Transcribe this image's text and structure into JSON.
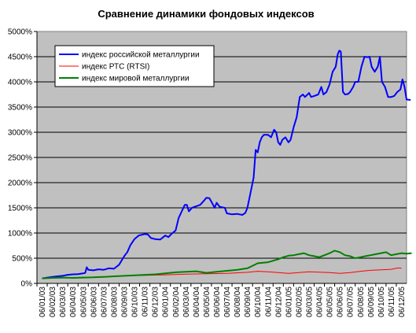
{
  "chart_data": {
    "type": "line",
    "title": "Сравнение динамики фондовых индексов",
    "xlabel": "",
    "ylabel": "",
    "ylim": [
      0,
      5000
    ],
    "yticks": [
      "0%",
      "500%",
      "1000%",
      "1500%",
      "2000%",
      "2500%",
      "3000%",
      "3500%",
      "4000%",
      "4500%",
      "5000%"
    ],
    "y_unit": "%",
    "grid": "horizontal",
    "plot_background": "#c0c0c0",
    "legend_position": "top-left",
    "categories": [
      "06/01/03",
      "06/02/03",
      "06/03/03",
      "06/04/03",
      "06/05/03",
      "06/06/03",
      "06/07/03",
      "06/08/03",
      "06/09/03",
      "06/10/03",
      "06/11/03",
      "06/12/03",
      "06/01/04",
      "06/02/04",
      "06/03/04",
      "06/04/04",
      "06/05/04",
      "06/06/04",
      "06/07/04",
      "06/08/04",
      "06/09/04",
      "06/10/04",
      "06/11/04",
      "06/12/04",
      "06/01/05",
      "06/02/05",
      "06/03/05",
      "06/04/05",
      "06/05/05",
      "06/06/05",
      "06/07/05",
      "06/08/05",
      "06/09/05",
      "06/10/05",
      "06/11/05",
      "06/12/05"
    ],
    "series": [
      {
        "name": "индекс российской металлургии",
        "color": "#0000ff",
        "points": [
          [
            0,
            100
          ],
          [
            1,
            130
          ],
          [
            1.5,
            140
          ],
          [
            2,
            150
          ],
          [
            2.5,
            170
          ],
          [
            3,
            180
          ],
          [
            3.5,
            185
          ],
          [
            4,
            200
          ],
          [
            4.2,
            210
          ],
          [
            4.35,
            320
          ],
          [
            4.5,
            270
          ],
          [
            5,
            260
          ],
          [
            5.5,
            280
          ],
          [
            6,
            270
          ],
          [
            6.5,
            300
          ],
          [
            7,
            290
          ],
          [
            7.5,
            370
          ],
          [
            8,
            540
          ],
          [
            8.3,
            620
          ],
          [
            8.6,
            760
          ],
          [
            9,
            880
          ],
          [
            9.4,
            950
          ],
          [
            10,
            980
          ],
          [
            10.3,
            970
          ],
          [
            10.6,
            900
          ],
          [
            11,
            880
          ],
          [
            11.5,
            870
          ],
          [
            12,
            950
          ],
          [
            12.3,
            920
          ],
          [
            12.7,
            1000
          ],
          [
            13,
            1050
          ],
          [
            13.3,
            1300
          ],
          [
            13.6,
            1430
          ],
          [
            13.9,
            1560
          ],
          [
            14.1,
            1560
          ],
          [
            14.3,
            1430
          ],
          [
            14.6,
            1500
          ],
          [
            15,
            1530
          ],
          [
            15.4,
            1560
          ],
          [
            15.8,
            1650
          ],
          [
            16,
            1700
          ],
          [
            16.3,
            1690
          ],
          [
            16.6,
            1580
          ],
          [
            16.8,
            1500
          ],
          [
            17,
            1600
          ],
          [
            17.3,
            1520
          ],
          [
            17.8,
            1500
          ],
          [
            18,
            1390
          ],
          [
            18.5,
            1370
          ],
          [
            19,
            1380
          ],
          [
            19.5,
            1360
          ],
          [
            19.8,
            1400
          ],
          [
            20,
            1500
          ],
          [
            20.3,
            1800
          ],
          [
            20.6,
            2100
          ],
          [
            20.8,
            2650
          ],
          [
            21,
            2600
          ],
          [
            21.2,
            2800
          ],
          [
            21.4,
            2900
          ],
          [
            21.6,
            2950
          ],
          [
            22,
            2950
          ],
          [
            22.3,
            2900
          ],
          [
            22.6,
            3050
          ],
          [
            22.8,
            3000
          ],
          [
            23,
            2800
          ],
          [
            23.2,
            2750
          ],
          [
            23.4,
            2850
          ],
          [
            23.7,
            2900
          ],
          [
            24,
            2800
          ],
          [
            24.2,
            2850
          ],
          [
            24.5,
            3100
          ],
          [
            24.8,
            3300
          ],
          [
            25.1,
            3700
          ],
          [
            25.4,
            3750
          ],
          [
            25.6,
            3700
          ],
          [
            26,
            3780
          ],
          [
            26.2,
            3700
          ],
          [
            26.5,
            3720
          ],
          [
            26.9,
            3750
          ],
          [
            27.2,
            3900
          ],
          [
            27.4,
            3750
          ],
          [
            27.7,
            3800
          ],
          [
            28,
            3950
          ],
          [
            28.3,
            4200
          ],
          [
            28.6,
            4300
          ],
          [
            28.8,
            4550
          ],
          [
            28.95,
            4620
          ],
          [
            29.1,
            4600
          ],
          [
            29.3,
            3800
          ],
          [
            29.5,
            3750
          ],
          [
            29.8,
            3760
          ],
          [
            30,
            3800
          ],
          [
            30.3,
            3900
          ],
          [
            30.5,
            4000
          ],
          [
            30.8,
            4000
          ],
          [
            31.1,
            4300
          ],
          [
            31.4,
            4500
          ],
          [
            31.7,
            4490
          ],
          [
            31.9,
            4500
          ],
          [
            32.1,
            4300
          ],
          [
            32.4,
            4200
          ],
          [
            32.7,
            4300
          ],
          [
            32.9,
            4500
          ],
          [
            33.1,
            4000
          ],
          [
            33.4,
            3900
          ],
          [
            33.7,
            3700
          ],
          [
            34,
            3700
          ],
          [
            34.3,
            3720
          ],
          [
            34.6,
            3800
          ],
          [
            34.9,
            3850
          ],
          [
            35.1,
            4050
          ],
          [
            35.3,
            3900
          ],
          [
            35.5,
            3650
          ],
          [
            35.9,
            3640
          ]
        ]
      },
      {
        "name": "индекс РТС (RTSI)",
        "color": "#ff0000",
        "points": [
          [
            0,
            100
          ],
          [
            2,
            110
          ],
          [
            4,
            120
          ],
          [
            6,
            130
          ],
          [
            8,
            150
          ],
          [
            10,
            160
          ],
          [
            12,
            170
          ],
          [
            14,
            185
          ],
          [
            16,
            190
          ],
          [
            18,
            200
          ],
          [
            20,
            220
          ],
          [
            21,
            240
          ],
          [
            22,
            230
          ],
          [
            24,
            200
          ],
          [
            26,
            230
          ],
          [
            28,
            215
          ],
          [
            29,
            200
          ],
          [
            30,
            215
          ],
          [
            31,
            240
          ],
          [
            32,
            260
          ],
          [
            33,
            270
          ],
          [
            34,
            280
          ],
          [
            34.7,
            310
          ],
          [
            35,
            300
          ]
        ]
      },
      {
        "name": "индекс мировой металлургии",
        "color": "#008000",
        "points": [
          [
            0,
            100
          ],
          [
            1,
            110
          ],
          [
            2,
            115
          ],
          [
            3,
            110
          ],
          [
            4,
            115
          ],
          [
            5,
            120
          ],
          [
            6,
            130
          ],
          [
            7,
            140
          ],
          [
            8,
            150
          ],
          [
            9,
            160
          ],
          [
            10,
            170
          ],
          [
            11,
            180
          ],
          [
            12,
            200
          ],
          [
            13,
            220
          ],
          [
            14,
            230
          ],
          [
            15,
            240
          ],
          [
            16,
            210
          ],
          [
            17,
            230
          ],
          [
            18,
            250
          ],
          [
            19,
            270
          ],
          [
            20,
            300
          ],
          [
            20.5,
            350
          ],
          [
            21,
            400
          ],
          [
            22,
            420
          ],
          [
            22.5,
            450
          ],
          [
            23,
            480
          ],
          [
            23.5,
            520
          ],
          [
            24,
            550
          ],
          [
            24.5,
            560
          ],
          [
            25,
            580
          ],
          [
            25.5,
            600
          ],
          [
            26,
            560
          ],
          [
            26.5,
            540
          ],
          [
            27,
            520
          ],
          [
            27.5,
            560
          ],
          [
            28,
            600
          ],
          [
            28.5,
            650
          ],
          [
            29,
            620
          ],
          [
            29.5,
            560
          ],
          [
            30,
            540
          ],
          [
            30.5,
            500
          ],
          [
            31,
            520
          ],
          [
            31.5,
            540
          ],
          [
            32,
            560
          ],
          [
            32.5,
            580
          ],
          [
            33,
            600
          ],
          [
            33.5,
            620
          ],
          [
            34,
            560
          ],
          [
            34.5,
            580
          ],
          [
            35,
            600
          ],
          [
            35.5,
            590
          ],
          [
            36,
            600
          ]
        ]
      }
    ]
  }
}
